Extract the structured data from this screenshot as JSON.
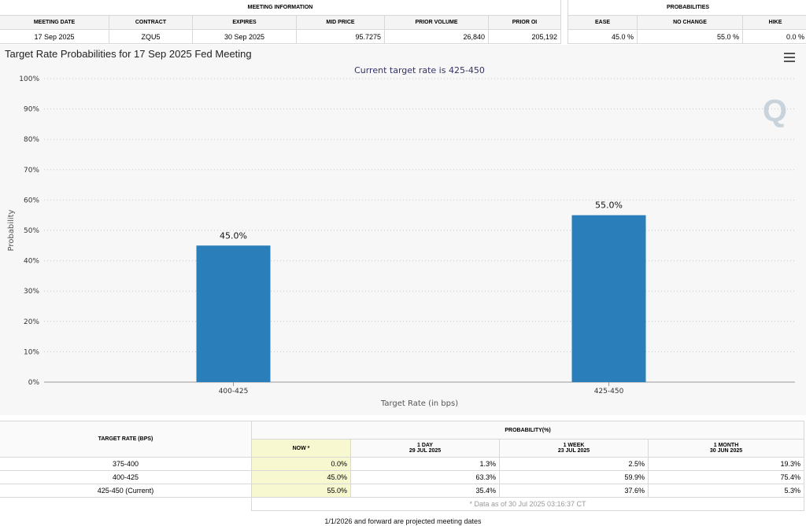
{
  "meeting_info": {
    "group_title": "MEETING INFORMATION",
    "headers": [
      "MEETING DATE",
      "CONTRACT",
      "EXPIRES",
      "MID PRICE",
      "PRIOR VOLUME",
      "PRIOR OI"
    ],
    "values": [
      "17 Sep 2025",
      "ZQU5",
      "30 Sep 2025",
      "95.7275",
      "26,840",
      "205,192"
    ]
  },
  "probabilities": {
    "group_title": "PROBABILITIES",
    "headers": [
      "EASE",
      "NO CHANGE",
      "HIKE"
    ],
    "values": [
      "45.0 %",
      "55.0 %",
      "0.0 %"
    ]
  },
  "chart": {
    "title": "Target Rate Probabilities for 17 Sep 2025 Fed Meeting",
    "menu_icon": "hamburger-menu-icon",
    "watermark": "Q",
    "bar_color": "#2a7fbb"
  },
  "chart_data": {
    "type": "bar",
    "title": "Target Rate Probabilities for 17 Sep 2025 Fed Meeting",
    "subtitle": "Current target rate is 425-450",
    "categories": [
      "400-425",
      "425-450"
    ],
    "values": [
      45.0,
      55.0
    ],
    "data_labels": [
      "45.0%",
      "55.0%"
    ],
    "xlabel": "Target Rate (in bps)",
    "ylabel": "Probability",
    "ylim": [
      0,
      100
    ],
    "yticks": [
      "0%",
      "10%",
      "20%",
      "30%",
      "40%",
      "50%",
      "60%",
      "70%",
      "80%",
      "90%",
      "100%"
    ],
    "grid": true,
    "legend": "none"
  },
  "rate_table": {
    "col_header": "TARGET RATE (BPS)",
    "group_header": "PROBABILITY(%)",
    "periods": [
      {
        "label": "NOW *",
        "date": ""
      },
      {
        "label": "1 DAY",
        "date": "29 JUL 2025"
      },
      {
        "label": "1 WEEK",
        "date": "23 JUL 2025"
      },
      {
        "label": "1 MONTH",
        "date": "30 JUN 2025"
      }
    ],
    "rows": [
      {
        "rate": "375-400",
        "values": [
          "0.0%",
          "1.3%",
          "2.5%",
          "19.3%"
        ]
      },
      {
        "rate": "400-425",
        "values": [
          "45.0%",
          "63.3%",
          "59.9%",
          "75.4%"
        ]
      },
      {
        "rate": "425-450 (Current)",
        "values": [
          "55.0%",
          "35.4%",
          "37.6%",
          "5.3%"
        ]
      }
    ],
    "note": "* Data as of 30 Jul 2025 03:16:37 CT"
  },
  "footer": "1/1/2026 and forward are projected meeting dates"
}
